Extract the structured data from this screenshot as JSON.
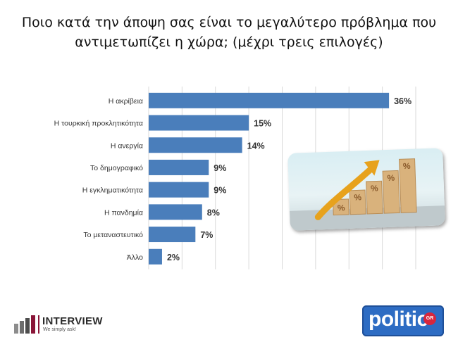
{
  "title_lines": [
    "Ποιο κατά την άποψη σας είναι το μεγαλύτερο πρόβλημα που",
    "αντιμετωπίζει η χώρα; (μέχρι τρεις επιλογές)"
  ],
  "chart_data": {
    "type": "bar",
    "orientation": "horizontal",
    "categories": [
      "Η ακρίβεια",
      "Η τουρκική προκλητικότητα",
      "Η ανεργία",
      "Το δημογραφικό",
      "Η εγκληματικότητα",
      "Η πανδημία",
      "Το μεταναστευτικό",
      "Άλλο"
    ],
    "values": [
      36,
      15,
      14,
      9,
      9,
      8,
      7,
      2
    ],
    "value_labels": [
      "36%",
      "15%",
      "14%",
      "9%",
      "9%",
      "8%",
      "7%",
      "2%"
    ],
    "xlim": [
      0,
      40
    ],
    "grid": "vertical",
    "bar_color": "#4a7ebb",
    "grid_color": "#d9d9d9"
  },
  "footer": {
    "interview_name": "INTERVIEW",
    "interview_tagline": "We simply ask!",
    "politic_name": "politic",
    "politic_badge": "GR"
  },
  "colors": {
    "interview_accent": "#8a1538",
    "politic_blue": "#2d6cc3"
  }
}
